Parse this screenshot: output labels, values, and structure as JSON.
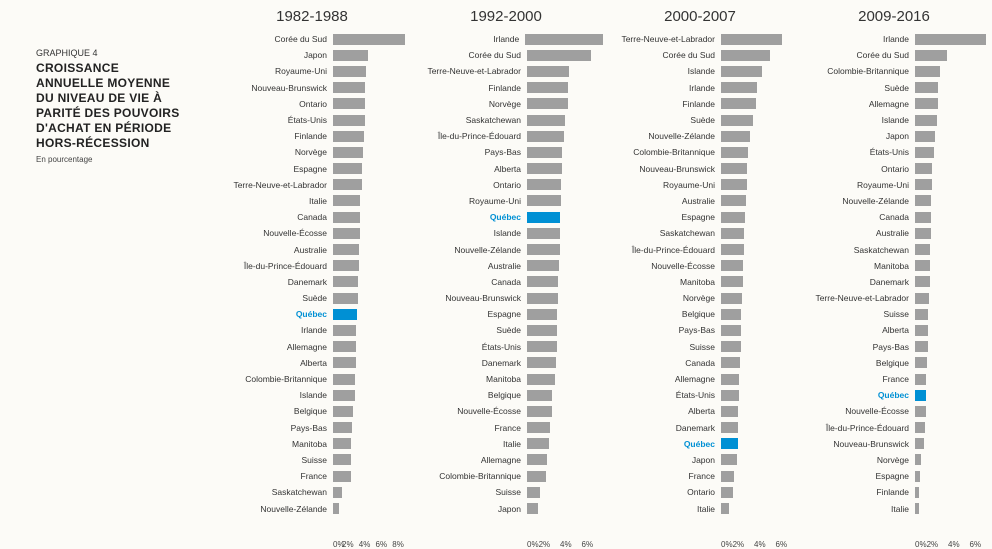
{
  "title_block": {
    "graph_num": "GRAPHIQUE 4",
    "title_lines": [
      "CROISSANCE",
      "ANNUELLE MOYENNE",
      "DU NIVEAU DE VIE À",
      "PARITÉ DES POUVOIRS",
      "D'ACHAT EN PÉRIODE",
      "HORS-RÉCESSION"
    ],
    "subtitle": "En pourcentage"
  },
  "colors": {
    "bar_default": "#9f9f9f",
    "bar_highlight": "#0090d4",
    "text_highlight": "#0090d4",
    "background": "#fcfbf7"
  },
  "panels": [
    {
      "header": "1982-1988",
      "xmax": 8,
      "ticks": [
        "0%",
        "2%",
        "4%",
        "6%",
        "8%"
      ],
      "rows": [
        {
          "label": "Corée du Sud",
          "value": 8.0
        },
        {
          "label": "Japon",
          "value": 3.9
        },
        {
          "label": "Royaume-Uni",
          "value": 3.7
        },
        {
          "label": "Nouveau-Brunswick",
          "value": 3.6
        },
        {
          "label": "Ontario",
          "value": 3.55
        },
        {
          "label": "États-Unis",
          "value": 3.5
        },
        {
          "label": "Finlande",
          "value": 3.4
        },
        {
          "label": "Norvège",
          "value": 3.3
        },
        {
          "label": "Espagne",
          "value": 3.25
        },
        {
          "label": "Terre-Neuve-et-Labrador",
          "value": 3.2
        },
        {
          "label": "Italie",
          "value": 3.05
        },
        {
          "label": "Canada",
          "value": 3.0
        },
        {
          "label": "Nouvelle-Écosse",
          "value": 2.95
        },
        {
          "label": "Australie",
          "value": 2.9
        },
        {
          "label": "Île-du-Prince-Édouard",
          "value": 2.85
        },
        {
          "label": "Danemark",
          "value": 2.8
        },
        {
          "label": "Suède",
          "value": 2.75
        },
        {
          "label": "Québec",
          "value": 2.7,
          "highlight": true
        },
        {
          "label": "Irlande",
          "value": 2.6
        },
        {
          "label": "Allemagne",
          "value": 2.55
        },
        {
          "label": "Alberta",
          "value": 2.5
        },
        {
          "label": "Colombie-Britannique",
          "value": 2.45
        },
        {
          "label": "Islande",
          "value": 2.4
        },
        {
          "label": "Belgique",
          "value": 2.2
        },
        {
          "label": "Pays-Bas",
          "value": 2.1
        },
        {
          "label": "Manitoba",
          "value": 2.05
        },
        {
          "label": "Suisse",
          "value": 2.0
        },
        {
          "label": "France",
          "value": 1.95
        },
        {
          "label": "Saskatchewan",
          "value": 1.0
        },
        {
          "label": "Nouvelle-Zélande",
          "value": 0.7
        }
      ]
    },
    {
      "header": "1992-2000",
      "xmax": 6,
      "ticks": [
        "0%",
        "2%",
        "4%",
        "6%"
      ],
      "rows": [
        {
          "label": "Irlande",
          "value": 6.5
        },
        {
          "label": "Corée du Sud",
          "value": 5.3
        },
        {
          "label": "Terre-Neuve-et-Labrador",
          "value": 3.5
        },
        {
          "label": "Finlande",
          "value": 3.45
        },
        {
          "label": "Norvège",
          "value": 3.4
        },
        {
          "label": "Saskatchewan",
          "value": 3.2
        },
        {
          "label": "Île-du-Prince-Édouard",
          "value": 3.1
        },
        {
          "label": "Pays-Bas",
          "value": 2.95
        },
        {
          "label": "Alberta",
          "value": 2.9
        },
        {
          "label": "Ontario",
          "value": 2.85
        },
        {
          "label": "Royaume-Uni",
          "value": 2.8
        },
        {
          "label": "Québec",
          "value": 2.78,
          "highlight": true
        },
        {
          "label": "Islande",
          "value": 2.75
        },
        {
          "label": "Nouvelle-Zélande",
          "value": 2.72
        },
        {
          "label": "Australie",
          "value": 2.7
        },
        {
          "label": "Canada",
          "value": 2.62
        },
        {
          "label": "Nouveau-Brunswick",
          "value": 2.55
        },
        {
          "label": "Espagne",
          "value": 2.52
        },
        {
          "label": "Suède",
          "value": 2.5
        },
        {
          "label": "États-Unis",
          "value": 2.48
        },
        {
          "label": "Danemark",
          "value": 2.4
        },
        {
          "label": "Manitoba",
          "value": 2.35
        },
        {
          "label": "Belgique",
          "value": 2.1
        },
        {
          "label": "Nouvelle-Écosse",
          "value": 2.05
        },
        {
          "label": "France",
          "value": 1.9
        },
        {
          "label": "Italie",
          "value": 1.8
        },
        {
          "label": "Allemagne",
          "value": 1.7
        },
        {
          "label": "Colombie-Britannique",
          "value": 1.55
        },
        {
          "label": "Suisse",
          "value": 1.1
        },
        {
          "label": "Japon",
          "value": 0.95
        }
      ]
    },
    {
      "header": "2000-2007",
      "xmax": 6,
      "ticks": [
        "0%",
        "2%",
        "4%",
        "6%"
      ],
      "rows": [
        {
          "label": "Terre-Neuve-et-Labrador",
          "value": 5.1
        },
        {
          "label": "Corée du Sud",
          "value": 4.1
        },
        {
          "label": "Islande",
          "value": 3.4
        },
        {
          "label": "Irlande",
          "value": 3.0
        },
        {
          "label": "Finlande",
          "value": 2.9
        },
        {
          "label": "Suède",
          "value": 2.7
        },
        {
          "label": "Nouvelle-Zélande",
          "value": 2.45
        },
        {
          "label": "Colombie-Britannique",
          "value": 2.25
        },
        {
          "label": "Nouveau-Brunswick",
          "value": 2.2
        },
        {
          "label": "Royaume-Uni",
          "value": 2.15
        },
        {
          "label": "Australie",
          "value": 2.1
        },
        {
          "label": "Espagne",
          "value": 2.0
        },
        {
          "label": "Saskatchewan",
          "value": 1.95
        },
        {
          "label": "Île-du-Prince-Édouard",
          "value": 1.9
        },
        {
          "label": "Nouvelle-Écosse",
          "value": 1.85
        },
        {
          "label": "Manitoba",
          "value": 1.8
        },
        {
          "label": "Norvège",
          "value": 1.75
        },
        {
          "label": "Belgique",
          "value": 1.7
        },
        {
          "label": "Pays-Bas",
          "value": 1.68
        },
        {
          "label": "Suisse",
          "value": 1.65
        },
        {
          "label": "Canada",
          "value": 1.6
        },
        {
          "label": "Allemagne",
          "value": 1.5
        },
        {
          "label": "États-Unis",
          "value": 1.48
        },
        {
          "label": "Alberta",
          "value": 1.45
        },
        {
          "label": "Danemark",
          "value": 1.42
        },
        {
          "label": "Québec",
          "value": 1.4,
          "highlight": true
        },
        {
          "label": "Japon",
          "value": 1.35
        },
        {
          "label": "France",
          "value": 1.1
        },
        {
          "label": "Ontario",
          "value": 1.0
        },
        {
          "label": "Italie",
          "value": 0.65
        }
      ]
    },
    {
      "header": "2009-2016",
      "xmax": 6,
      "ticks": [
        "0%",
        "2%",
        "4%",
        "6%"
      ],
      "rows": [
        {
          "label": "Irlande",
          "value": 5.9
        },
        {
          "label": "Corée du Sud",
          "value": 2.7
        },
        {
          "label": "Colombie-Britannique",
          "value": 2.1
        },
        {
          "label": "Suède",
          "value": 1.95
        },
        {
          "label": "Allemagne",
          "value": 1.9
        },
        {
          "label": "Islande",
          "value": 1.8
        },
        {
          "label": "Japon",
          "value": 1.7
        },
        {
          "label": "États-Unis",
          "value": 1.55
        },
        {
          "label": "Ontario",
          "value": 1.45
        },
        {
          "label": "Royaume-Uni",
          "value": 1.4
        },
        {
          "label": "Nouvelle-Zélande",
          "value": 1.35
        },
        {
          "label": "Canada",
          "value": 1.32
        },
        {
          "label": "Australie",
          "value": 1.3
        },
        {
          "label": "Saskatchewan",
          "value": 1.28
        },
        {
          "label": "Manitoba",
          "value": 1.25
        },
        {
          "label": "Danemark",
          "value": 1.22
        },
        {
          "label": "Terre-Neuve-et-Labrador",
          "value": 1.2
        },
        {
          "label": "Suisse",
          "value": 1.1
        },
        {
          "label": "Alberta",
          "value": 1.08
        },
        {
          "label": "Pays-Bas",
          "value": 1.05
        },
        {
          "label": "Belgique",
          "value": 1.0
        },
        {
          "label": "France",
          "value": 0.95
        },
        {
          "label": "Québec",
          "value": 0.92,
          "highlight": true
        },
        {
          "label": "Nouvelle-Écosse",
          "value": 0.88
        },
        {
          "label": "Île-du-Prince-Édouard",
          "value": 0.85
        },
        {
          "label": "Nouveau-Brunswick",
          "value": 0.75
        },
        {
          "label": "Norvège",
          "value": 0.5
        },
        {
          "label": "Espagne",
          "value": 0.45
        },
        {
          "label": "Finlande",
          "value": 0.35
        },
        {
          "label": "Italie",
          "value": 0.3
        }
      ]
    }
  ]
}
